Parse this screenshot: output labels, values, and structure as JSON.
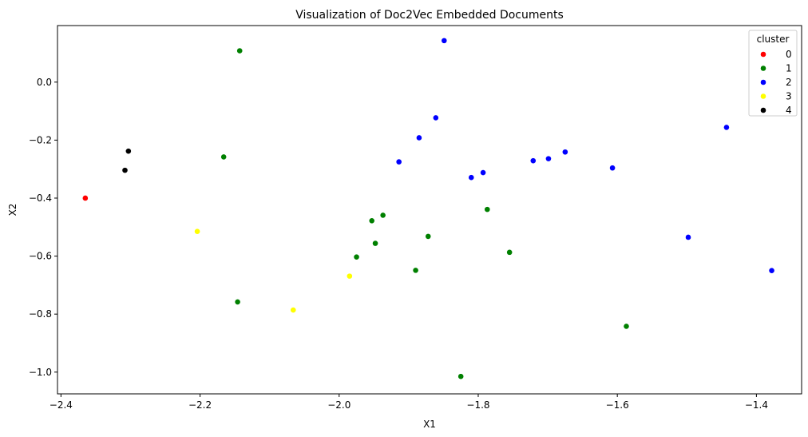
{
  "chart_data": {
    "type": "scatter",
    "title": "Visualization of Doc2Vec Embedded Documents",
    "xlabel": "X1",
    "ylabel": "X2",
    "xlim": [
      -2.405,
      -1.335
    ],
    "ylim": [
      -1.075,
      0.195
    ],
    "xticks": [
      -2.4,
      -2.2,
      -2.0,
      -1.8,
      -1.6,
      -1.4
    ],
    "xtick_labels": [
      "−2.4",
      "−2.2",
      "−2.0",
      "−1.8",
      "−1.6",
      "−1.4"
    ],
    "yticks": [
      0.0,
      -0.2,
      -0.4,
      -0.6,
      -0.8,
      -1.0
    ],
    "ytick_labels": [
      "0.0",
      "−0.2",
      "−0.4",
      "−0.6",
      "−0.8",
      "−1.0"
    ],
    "grid": false,
    "legend": {
      "title": "cluster",
      "position": "top-right"
    },
    "series": [
      {
        "name": "0",
        "color": "#ff0000",
        "points": [
          [
            -2.365,
            -0.4
          ]
        ]
      },
      {
        "name": "1",
        "color": "#008000",
        "points": [
          [
            -2.143,
            0.108
          ],
          [
            -2.166,
            -0.258
          ],
          [
            -1.953,
            -0.478
          ],
          [
            -1.937,
            -0.459
          ],
          [
            -1.948,
            -0.556
          ],
          [
            -1.975,
            -0.603
          ],
          [
            -1.872,
            -0.532
          ],
          [
            -1.787,
            -0.439
          ],
          [
            -1.755,
            -0.587
          ],
          [
            -1.89,
            -0.649
          ],
          [
            -2.146,
            -0.758
          ],
          [
            -1.587,
            -0.842
          ],
          [
            -1.825,
            -1.015
          ]
        ]
      },
      {
        "name": "2",
        "color": "#0000ff",
        "points": [
          [
            -1.849,
            0.143
          ],
          [
            -1.861,
            -0.123
          ],
          [
            -1.885,
            -0.192
          ],
          [
            -1.914,
            -0.275
          ],
          [
            -1.81,
            -0.329
          ],
          [
            -1.793,
            -0.312
          ],
          [
            -1.721,
            -0.271
          ],
          [
            -1.699,
            -0.264
          ],
          [
            -1.675,
            -0.241
          ],
          [
            -1.607,
            -0.296
          ],
          [
            -1.443,
            -0.156
          ],
          [
            -1.498,
            -0.535
          ],
          [
            -1.378,
            -0.65
          ]
        ]
      },
      {
        "name": "3",
        "color": "#ffff00",
        "points": [
          [
            -2.204,
            -0.515
          ],
          [
            -1.985,
            -0.669
          ],
          [
            -2.066,
            -0.786
          ]
        ]
      },
      {
        "name": "4",
        "color": "#000000",
        "points": [
          [
            -2.303,
            -0.238
          ],
          [
            -2.308,
            -0.304
          ]
        ]
      }
    ]
  }
}
